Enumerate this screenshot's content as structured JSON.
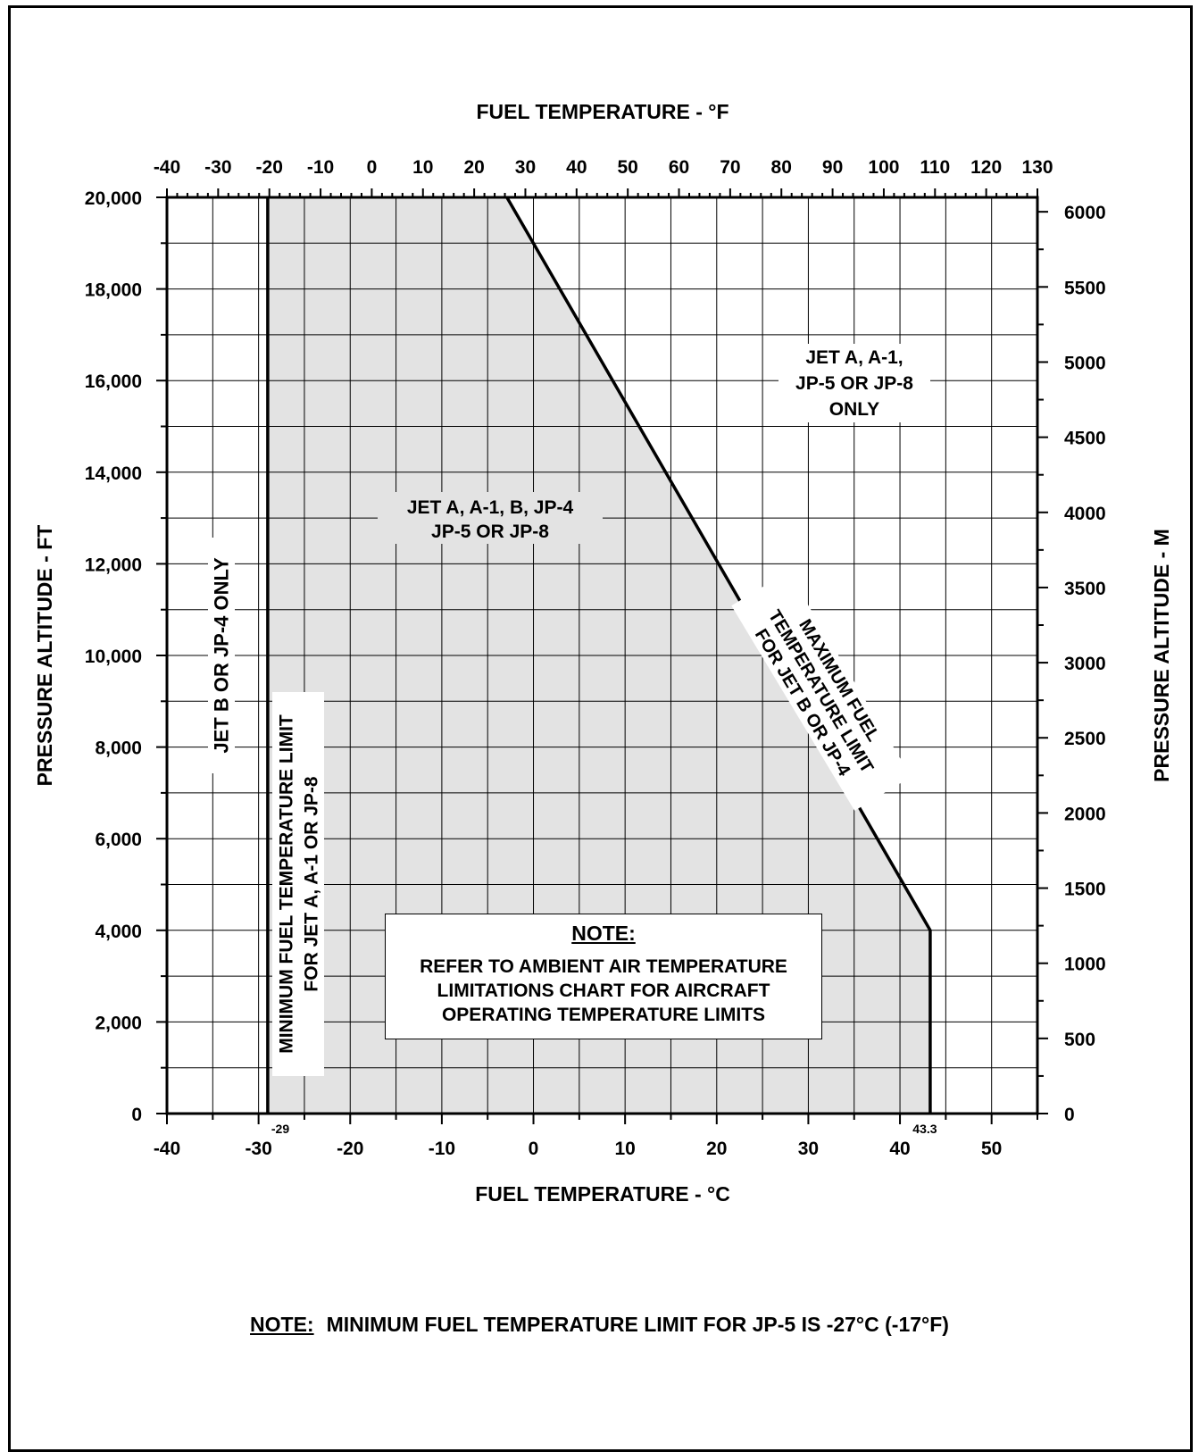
{
  "chart_data": {
    "type": "area",
    "title": "",
    "top_axis": {
      "label": "FUEL TEMPERATURE  -  °F",
      "min": -40,
      "max": 130,
      "ticks": [
        "-40",
        "-30",
        "-20",
        "-10",
        "0",
        "10",
        "20",
        "30",
        "40",
        "50",
        "60",
        "70",
        "80",
        "90",
        "100",
        "110",
        "120",
        "130"
      ]
    },
    "bottom_axis": {
      "label": "FUEL TEMPERATURE  -  °C",
      "min": -40,
      "max": 55,
      "ticks": [
        "-40",
        "-30",
        "-20",
        "-10",
        "0",
        "10",
        "20",
        "30",
        "40",
        "50"
      ]
    },
    "left_axis": {
      "label": "PRESSURE ALTITUDE  -  FT",
      "min": 0,
      "max": 20000,
      "ticks": [
        "0",
        "2,000",
        "4,000",
        "6,000",
        "8,000",
        "10,000",
        "12,000",
        "14,000",
        "16,000",
        "18,000",
        "20,000"
      ]
    },
    "right_axis": {
      "label": "PRESSURE ALTITUDE  -  M",
      "min_m": 0,
      "max_m": 6000,
      "ticks": [
        "0",
        "500",
        "1000",
        "1500",
        "2000",
        "2500",
        "3000",
        "3500",
        "4000",
        "4500",
        "5000",
        "5500",
        "6000"
      ]
    },
    "grid": true,
    "min_limit_line": {
      "label_lines": [
        "MINIMUM FUEL TEMPERATURE LIMIT",
        "FOR JET A, A-1 OR JP-8"
      ],
      "temp_c": -29,
      "value_label": "-29"
    },
    "max_limit_line": {
      "label_lines": [
        "MAXIMUM FUEL",
        "TEMPERATURE LIMIT",
        "FOR JET B OR JP-4"
      ],
      "points": [
        {
          "temp_c": -2.9,
          "alt_ft": 20000
        },
        {
          "temp_c": 43.3,
          "alt_ft": 4000
        },
        {
          "temp_c": 43.3,
          "alt_ft": 0
        }
      ],
      "value_label": "43.3"
    },
    "regions": [
      {
        "name": "jet-b-only",
        "label_lines": [
          "JET B OR JP-4 ONLY"
        ]
      },
      {
        "name": "all-fuels",
        "label_lines": [
          "JET A, A-1, B, JP-4",
          "JP-5 OR JP-8"
        ]
      },
      {
        "name": "jet-a-only",
        "label_lines": [
          "JET A, A-1,",
          "JP-5 OR JP-8",
          "ONLY"
        ]
      }
    ],
    "colors": {
      "shade": "#e3e3e3",
      "line": "#000000",
      "grid": "#000000"
    }
  },
  "note_box": {
    "title": "NOTE:",
    "lines": [
      "REFER TO AMBIENT AIR TEMPERATURE",
      "LIMITATIONS CHART FOR AIRCRAFT",
      "OPERATING TEMPERATURE LIMITS"
    ]
  },
  "footnote": {
    "lead": "NOTE:",
    "text": "MINIMUM FUEL TEMPERATURE LIMIT FOR JP-5 IS -27°C (-17°F)"
  }
}
